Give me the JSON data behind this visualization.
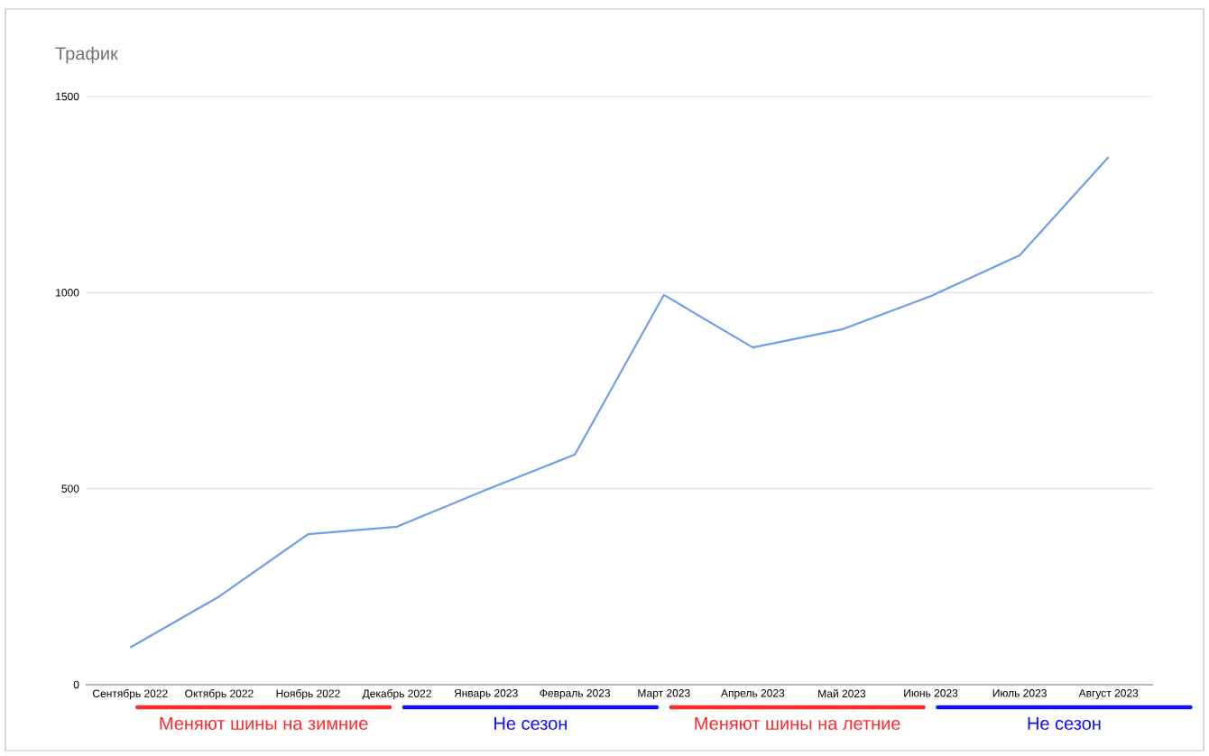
{
  "chart_data": {
    "type": "line",
    "title": "Трафик",
    "categories": [
      "Сентябрь 2022",
      "Октябрь 2022",
      "Ноябрь 2022",
      "Декабрь 2022",
      "Январь 2023",
      "Февраль 2023",
      "Март 2023",
      "Апрель 2023",
      "Май 2023",
      "Июнь 2023",
      "Июль 2023",
      "Август 2023"
    ],
    "series": [
      {
        "color": "#6d9eeb",
        "values": [
          95,
          225,
          384,
          403,
          497,
          587,
          994,
          860,
          906,
          991,
          1095,
          1346
        ]
      }
    ],
    "ylim": [
      0,
      1500
    ],
    "yticks": [
      0,
      500,
      1000,
      1500
    ],
    "grid": "y",
    "annotations": [
      "Меняют шины на зимние",
      "Не сезон",
      "Меняют шины на летние",
      "Не сезон"
    ]
  }
}
